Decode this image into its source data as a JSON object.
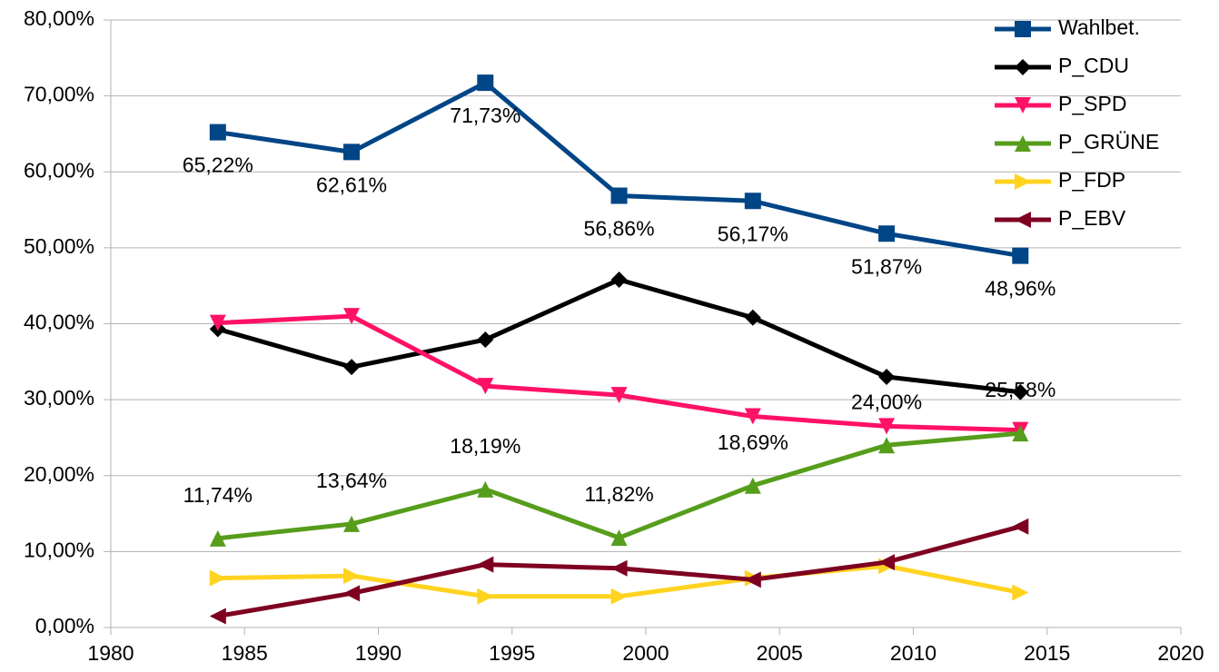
{
  "chart_data": {
    "type": "line",
    "x": [
      1984,
      1989,
      1994,
      1999,
      2004,
      2009,
      2014
    ],
    "xlim": [
      1980,
      2020
    ],
    "xticks": [
      1980,
      1985,
      1990,
      1995,
      2000,
      2005,
      2010,
      2015,
      2020
    ],
    "ylim": [
      0,
      80
    ],
    "yticks": [
      {
        "value": 0,
        "label": "0,00%"
      },
      {
        "value": 10,
        "label": "10,00%"
      },
      {
        "value": 20,
        "label": "20,00%"
      },
      {
        "value": 30,
        "label": "30,00%"
      },
      {
        "value": 40,
        "label": "40,00%"
      },
      {
        "value": 50,
        "label": "50,00%"
      },
      {
        "value": 60,
        "label": "60,00%"
      },
      {
        "value": 70,
        "label": "70,00%"
      },
      {
        "value": 80,
        "label": "80,00%"
      }
    ],
    "grid": true,
    "legend": "top-right",
    "series": [
      {
        "name": "Wahlbet.",
        "color": "#004586",
        "marker": "square",
        "label_position": "below",
        "values": [
          65.22,
          62.61,
          71.73,
          56.86,
          56.17,
          51.87,
          48.96
        ],
        "value_labels": [
          "65,22%",
          "62,61%",
          "71,73%",
          "56,86%",
          "56,17%",
          "51,87%",
          "48,96%"
        ]
      },
      {
        "name": "P_CDU",
        "color": "#000000",
        "marker": "diamond",
        "values": [
          39.3,
          34.3,
          37.9,
          45.8,
          40.8,
          33.0,
          31.0
        ]
      },
      {
        "name": "P_SPD",
        "color": "#ff1166",
        "marker": "triangle-down",
        "values": [
          40.1,
          41.0,
          31.8,
          30.6,
          27.8,
          26.5,
          26.0
        ]
      },
      {
        "name": "P_GRÜNE",
        "color": "#579d1c",
        "marker": "triangle-up",
        "label_position": "above",
        "values": [
          11.74,
          13.64,
          18.19,
          11.82,
          18.69,
          24.0,
          25.58
        ],
        "value_labels": [
          "11,74%",
          "13,64%",
          "18,19%",
          "11,82%",
          "18,69%",
          "24,00%",
          "25,58%"
        ]
      },
      {
        "name": "P_FDP",
        "color": "#ffd320",
        "marker": "triangle-right",
        "values": [
          6.5,
          6.8,
          4.1,
          4.1,
          6.5,
          8.1,
          4.6
        ]
      },
      {
        "name": "P_EBV",
        "color": "#7e0021",
        "marker": "triangle-left",
        "values": [
          1.5,
          4.5,
          8.3,
          7.8,
          6.3,
          8.6,
          13.3
        ]
      }
    ]
  }
}
